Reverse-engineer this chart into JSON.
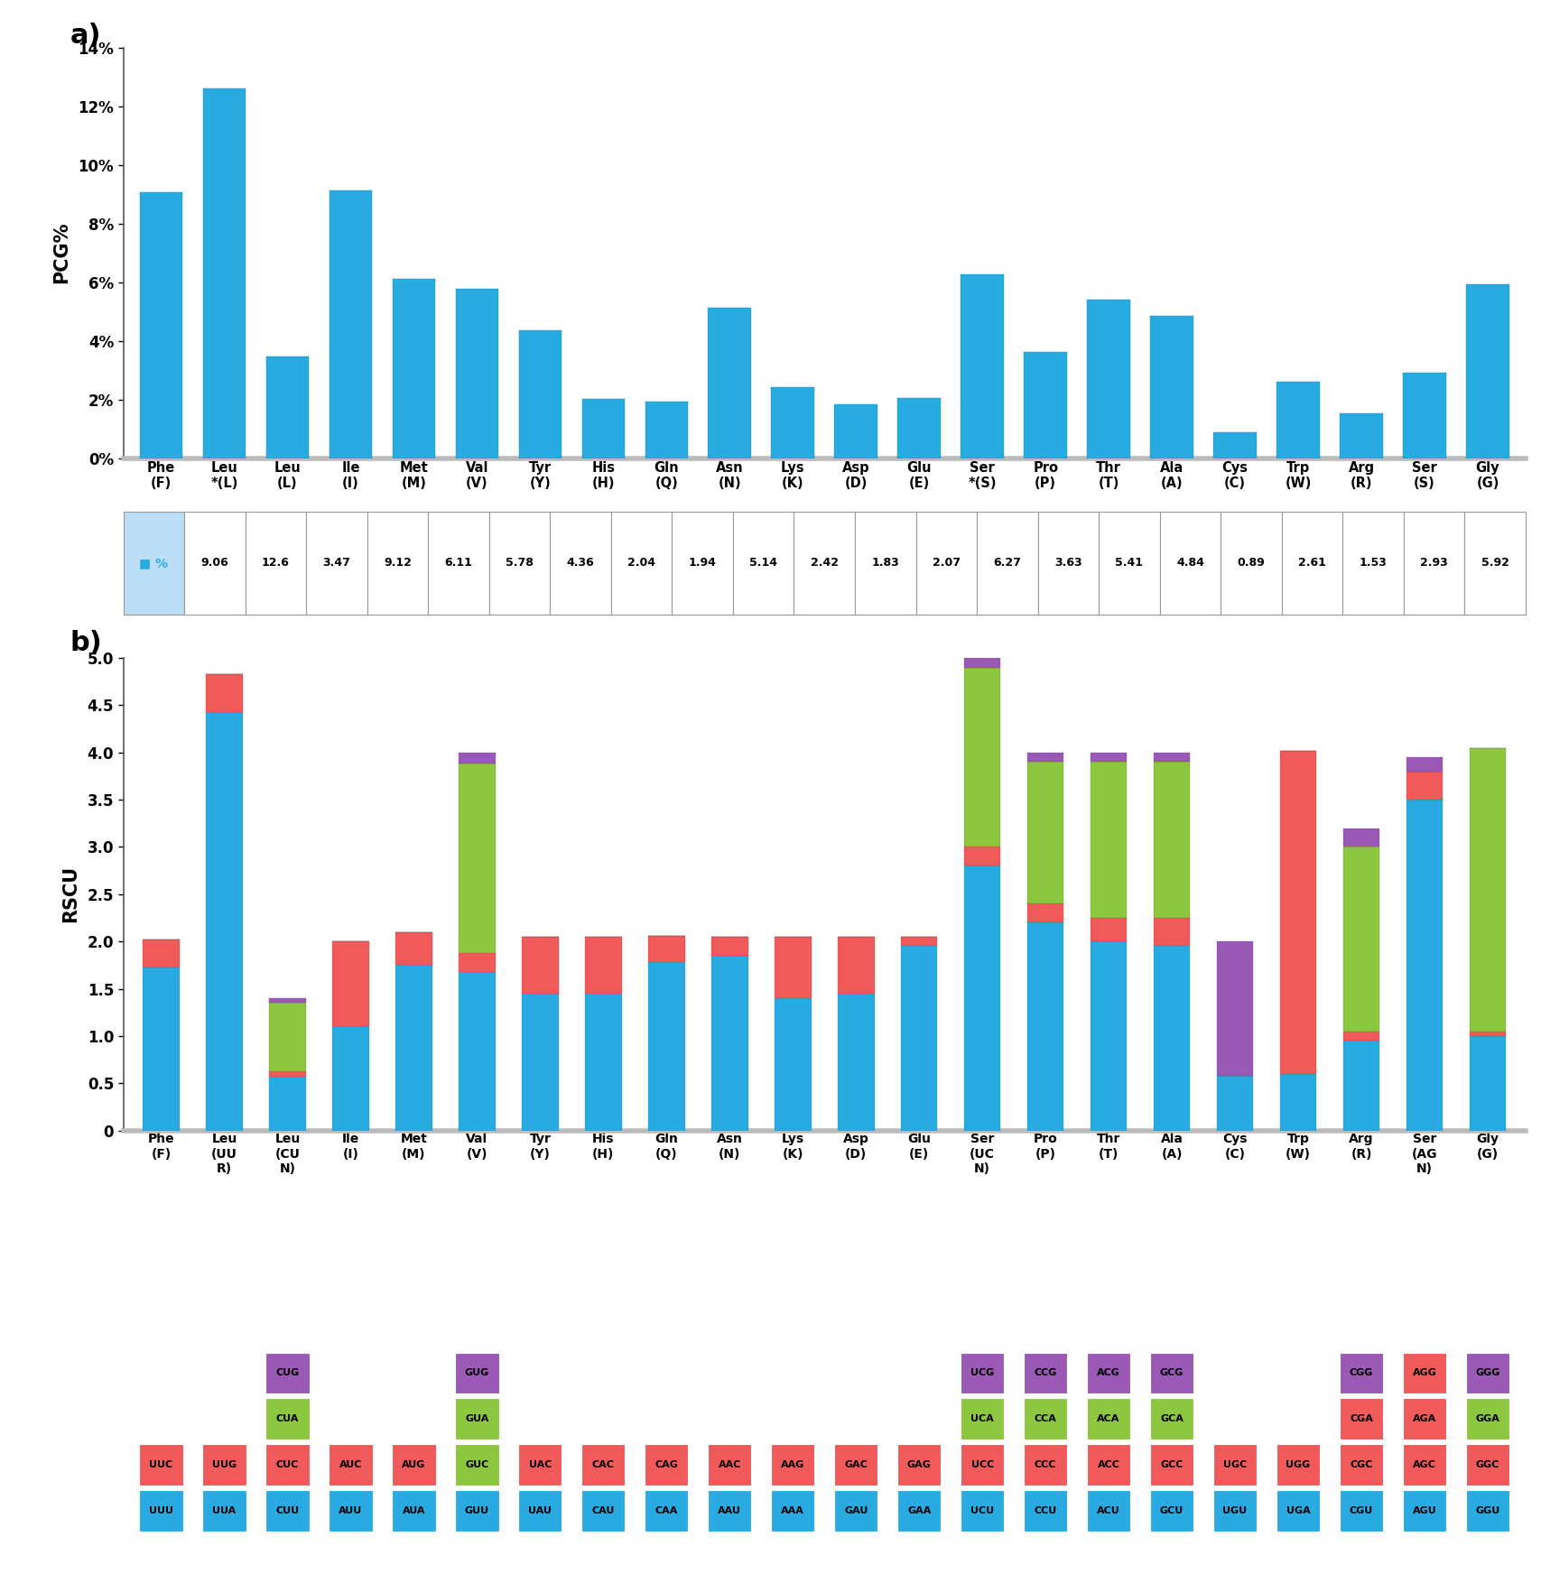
{
  "panel_a": {
    "categories": [
      "Phe\n(F)",
      "Leu\n*(L)",
      "Leu\n(L)",
      "Ile\n(I)",
      "Met\n(M)",
      "Val\n(V)",
      "Tyr\n(Y)",
      "His\n(H)",
      "Gln\n(Q)",
      "Asn\n(N)",
      "Lys\n(K)",
      "Asp\n(D)",
      "Glu\n(E)",
      "Ser\n*(S)",
      "Pro\n(P)",
      "Thr\n(T)",
      "Ala\n(A)",
      "Cys\n(C)",
      "Trp\n(W)",
      "Arg\n(R)",
      "Ser\n(S)",
      "Gly\n(G)"
    ],
    "values": [
      9.06,
      12.6,
      3.47,
      9.12,
      6.11,
      5.78,
      4.36,
      2.04,
      1.94,
      5.14,
      2.42,
      1.83,
      2.07,
      6.27,
      3.63,
      5.41,
      4.84,
      0.89,
      2.61,
      1.53,
      2.93,
      5.92
    ],
    "bar_color": "#29ABE2",
    "ylabel": "PCG%",
    "ylim": [
      0,
      14
    ],
    "yticks": [
      0,
      2,
      4,
      6,
      8,
      10,
      12,
      14
    ],
    "ytick_labels": [
      "0%",
      "2%",
      "4%",
      "6%",
      "8%",
      "10%",
      "12%",
      "14%"
    ],
    "table_values": [
      "9.06",
      "12.6",
      "3.47",
      "9.12",
      "6.11",
      "5.78",
      "4.36",
      "2.04",
      "1.94",
      "5.14",
      "2.42",
      "1.83",
      "2.07",
      "6.27",
      "3.63",
      "5.41",
      "4.84",
      "0.89",
      "2.61",
      "1.53",
      "2.93",
      "5.92"
    ]
  },
  "panel_b": {
    "categories": [
      "Phe\n(F)",
      "Leu\n(UU\nR)",
      "Leu\n(CU\nN)",
      "Ile\n(I)",
      "Met\n(M)",
      "Val\n(V)",
      "Tyr\n(Y)",
      "His\n(H)",
      "Gln\n(Q)",
      "Asn\n(N)",
      "Lys\n(K)",
      "Asp\n(D)",
      "Glu\n(E)",
      "Ser\n(UC\nN)",
      "Pro\n(P)",
      "Thr\n(T)",
      "Ala\n(A)",
      "Cys\n(C)",
      "Trp\n(W)",
      "Arg\n(R)",
      "Ser\n(AG\nN)",
      "Gly\n(G)"
    ],
    "stacked_data": [
      {
        "cyan": 1.72,
        "red": 0.3,
        "green": 0.0,
        "purple": 0.0
      },
      {
        "cyan": 4.43,
        "red": 0.4,
        "green": 0.0,
        "purple": 0.0
      },
      {
        "cyan": 0.57,
        "red": 0.06,
        "green": 0.72,
        "purple": 0.05
      },
      {
        "cyan": 1.1,
        "red": 0.9,
        "green": 0.0,
        "purple": 0.0
      },
      {
        "cyan": 1.75,
        "red": 0.35,
        "green": 0.0,
        "purple": 0.0
      },
      {
        "cyan": 1.68,
        "red": 0.2,
        "green": 2.0,
        "purple": 0.12
      },
      {
        "cyan": 1.45,
        "red": 0.6,
        "green": 0.0,
        "purple": 0.0
      },
      {
        "cyan": 1.45,
        "red": 0.6,
        "green": 0.0,
        "purple": 0.0
      },
      {
        "cyan": 1.78,
        "red": 0.28,
        "green": 0.0,
        "purple": 0.0
      },
      {
        "cyan": 1.85,
        "red": 0.2,
        "green": 0.0,
        "purple": 0.0
      },
      {
        "cyan": 1.4,
        "red": 0.65,
        "green": 0.0,
        "purple": 0.0
      },
      {
        "cyan": 1.45,
        "red": 0.6,
        "green": 0.0,
        "purple": 0.0
      },
      {
        "cyan": 1.95,
        "red": 0.1,
        "green": 0.0,
        "purple": 0.0
      },
      {
        "cyan": 2.8,
        "red": 0.2,
        "green": 1.9,
        "purple": 0.1
      },
      {
        "cyan": 2.2,
        "red": 0.2,
        "green": 1.5,
        "purple": 0.1
      },
      {
        "cyan": 2.0,
        "red": 0.25,
        "green": 1.65,
        "purple": 0.1
      },
      {
        "cyan": 1.95,
        "red": 0.3,
        "green": 1.65,
        "purple": 0.1
      },
      {
        "cyan": 0.58,
        "red": 0.0,
        "green": 0.0,
        "purple": 1.42
      },
      {
        "cyan": 0.6,
        "red": 3.42,
        "green": 0.0,
        "purple": 0.0
      },
      {
        "cyan": 0.95,
        "red": 0.1,
        "green": 1.95,
        "purple": 0.2
      },
      {
        "cyan": 3.5,
        "red": 0.3,
        "green": 0.0,
        "purple": 0.15
      },
      {
        "cyan": 1.0,
        "red": 0.05,
        "green": 3.0,
        "purple": 0.0
      }
    ],
    "colors": {
      "cyan": "#29ABE2",
      "red": "#F05A5A",
      "green": "#8DC63F",
      "purple": "#9B59B6"
    },
    "ylabel": "RSCU",
    "ylim": [
      0,
      5
    ],
    "yticks": [
      0,
      0.5,
      1.0,
      1.5,
      2.0,
      2.5,
      3.0,
      3.5,
      4.0,
      4.5,
      5.0
    ]
  },
  "codon_groups": [
    {
      "codons": [
        "UUC",
        "UUU"
      ],
      "colors": [
        "#F05A5A",
        "#29ABE2"
      ]
    },
    {
      "codons": [
        "UUG",
        "UUA"
      ],
      "colors": [
        "#F05A5A",
        "#29ABE2"
      ]
    },
    {
      "codons": [
        "CUG",
        "CUA",
        "CUC",
        "CUU"
      ],
      "colors": [
        "#9B59B6",
        "#8DC63F",
        "#F05A5A",
        "#29ABE2"
      ]
    },
    {
      "codons": [
        "AUC",
        "AUU"
      ],
      "colors": [
        "#F05A5A",
        "#29ABE2"
      ]
    },
    {
      "codons": [
        "AUG",
        "AUA"
      ],
      "colors": [
        "#F05A5A",
        "#29ABE2"
      ]
    },
    {
      "codons": [
        "GUG",
        "GUA",
        "GUC",
        "GUU"
      ],
      "colors": [
        "#9B59B6",
        "#8DC63F",
        "#8DC63F",
        "#29ABE2"
      ]
    },
    {
      "codons": [
        "UAC",
        "UAU"
      ],
      "colors": [
        "#F05A5A",
        "#29ABE2"
      ]
    },
    {
      "codons": [
        "CAC",
        "CAU"
      ],
      "colors": [
        "#F05A5A",
        "#29ABE2"
      ]
    },
    {
      "codons": [
        "CAG",
        "CAA"
      ],
      "colors": [
        "#F05A5A",
        "#29ABE2"
      ]
    },
    {
      "codons": [
        "AAC",
        "AAU"
      ],
      "colors": [
        "#F05A5A",
        "#29ABE2"
      ]
    },
    {
      "codons": [
        "AAG",
        "AAA"
      ],
      "colors": [
        "#F05A5A",
        "#29ABE2"
      ]
    },
    {
      "codons": [
        "GAC",
        "GAU"
      ],
      "colors": [
        "#F05A5A",
        "#29ABE2"
      ]
    },
    {
      "codons": [
        "GAG",
        "GAA"
      ],
      "colors": [
        "#F05A5A",
        "#29ABE2"
      ]
    },
    {
      "codons": [
        "UCG",
        "UCA",
        "UCC",
        "UCU"
      ],
      "colors": [
        "#9B59B6",
        "#8DC63F",
        "#F05A5A",
        "#29ABE2"
      ]
    },
    {
      "codons": [
        "CCG",
        "CCA",
        "CCC",
        "CCU"
      ],
      "colors": [
        "#9B59B6",
        "#8DC63F",
        "#F05A5A",
        "#29ABE2"
      ]
    },
    {
      "codons": [
        "ACG",
        "ACA",
        "ACC",
        "ACU"
      ],
      "colors": [
        "#9B59B6",
        "#8DC63F",
        "#F05A5A",
        "#29ABE2"
      ]
    },
    {
      "codons": [
        "GCG",
        "GCA",
        "GCC",
        "GCU"
      ],
      "colors": [
        "#9B59B6",
        "#8DC63F",
        "#F05A5A",
        "#29ABE2"
      ]
    },
    {
      "codons": [
        "UGC",
        "UGU"
      ],
      "colors": [
        "#F05A5A",
        "#29ABE2"
      ]
    },
    {
      "codons": [
        "UGG",
        "UGA"
      ],
      "colors": [
        "#F05A5A",
        "#29ABE2"
      ]
    },
    {
      "codons": [
        "CGG",
        "CGA",
        "CGC",
        "CGU"
      ],
      "colors": [
        "#9B59B6",
        "#F05A5A",
        "#F05A5A",
        "#29ABE2"
      ]
    },
    {
      "codons": [
        "AGG",
        "AGA",
        "AGC",
        "AGU"
      ],
      "colors": [
        "#F05A5A",
        "#F05A5A",
        "#F05A5A",
        "#29ABE2"
      ]
    },
    {
      "codons": [
        "GGG",
        "GGA",
        "GGC",
        "GGU"
      ],
      "colors": [
        "#9B59B6",
        "#8DC63F",
        "#F05A5A",
        "#29ABE2"
      ]
    }
  ],
  "figure_label_a": "a)",
  "figure_label_b": "b)"
}
